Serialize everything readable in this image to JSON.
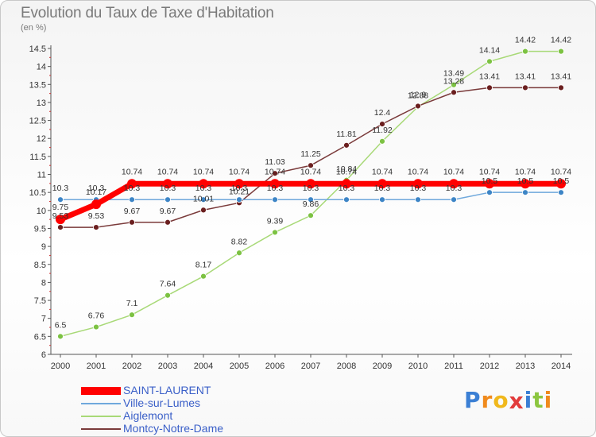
{
  "title": "Evolution du Taux de Taxe d'Habitation",
  "unit_label": "(en %)",
  "logo": {
    "text": "ProXiti",
    "letters": [
      {
        "ch": "P",
        "color": "#3b7fd4"
      },
      {
        "ch": "r",
        "color": "#f08a1c"
      },
      {
        "ch": "o",
        "color": "#f0b81c"
      },
      {
        "ch": "x",
        "color": "#e23b3b"
      },
      {
        "ch": "i",
        "color": "#3b7fd4"
      },
      {
        "ch": "t",
        "color": "#8cc63f"
      },
      {
        "ch": "i",
        "color": "#f08a1c"
      }
    ]
  },
  "chart_data": {
    "type": "line",
    "title": "Evolution du Taux de Taxe d'Habitation",
    "ylabel": "(en %)",
    "xlabel": "",
    "x": [
      "2000",
      "2001",
      "2002",
      "2003",
      "2004",
      "2005",
      "2006",
      "2007",
      "2008",
      "2009",
      "2010",
      "2011",
      "2012",
      "2013",
      "2014"
    ],
    "ylim": [
      6,
      14.5
    ],
    "yticks": [
      "6",
      "6.5",
      "7",
      "7.5",
      "8",
      "8.5",
      "9",
      "9.5",
      "10",
      "10.5",
      "11",
      "11.5",
      "12",
      "12.5",
      "13",
      "13.5",
      "14",
      "14.5"
    ],
    "grid": false,
    "legend_position": "bottom-left",
    "series": [
      {
        "name": "SAINT-LAURENT",
        "color": "#ff0000",
        "marker_color": "#ff0000",
        "values": [
          9.75,
          10.17,
          10.74,
          10.74,
          10.74,
          10.74,
          10.74,
          10.74,
          10.74,
          10.74,
          10.74,
          10.74,
          10.74,
          10.74,
          10.74
        ],
        "labels": [
          "9.75",
          "10.17",
          "10.74",
          "10.74",
          "10.74",
          "10.74",
          "10.74",
          "10.74",
          "10.74",
          "10.74",
          "10.74",
          "10.74",
          "10.74",
          "10.74",
          "10.74"
        ]
      },
      {
        "name": "Ville-sur-Lumes",
        "color": "#6fa8dc",
        "marker_color": "#3d85c6",
        "values": [
          10.3,
          10.3,
          10.3,
          10.3,
          10.3,
          10.3,
          10.3,
          10.3,
          10.3,
          10.3,
          10.3,
          10.3,
          10.5,
          10.5,
          10.5
        ],
        "labels": [
          "10.3",
          "10.3",
          "10.3",
          "10.3",
          "10.3",
          "10.3",
          "10.3",
          "10.3",
          "10.3",
          "10.3",
          "10.3",
          "10.3",
          "10.5",
          "10.5",
          "10.5"
        ]
      },
      {
        "name": "Aiglemont",
        "color": "#a8d977",
        "marker_color": "#7cc242",
        "values": [
          6.5,
          6.76,
          7.1,
          7.64,
          8.17,
          8.82,
          9.39,
          9.86,
          10.84,
          11.92,
          12.88,
          13.49,
          14.14,
          14.42,
          14.42
        ],
        "labels": [
          "6.5",
          "6.76",
          "7.1",
          "7.64",
          "8.17",
          "8.82",
          "9.39",
          "9.86",
          "10.84",
          "11.92",
          "12.88",
          "13.49",
          "14.14",
          "14.42",
          "14.42"
        ]
      },
      {
        "name": "Montcy-Notre-Dame",
        "color": "#7a3a3a",
        "marker_color": "#6b1f1f",
        "values": [
          9.53,
          9.53,
          9.67,
          9.67,
          10.01,
          10.21,
          11.03,
          11.25,
          11.81,
          12.4,
          12.9,
          13.28,
          13.41,
          13.41,
          13.41
        ],
        "labels": [
          "9.53",
          "9.53",
          "9.67",
          "9.67",
          "10.01",
          "10.21",
          "11.03",
          "11.25",
          "11.81",
          "12.4",
          "12.9",
          "13.28",
          "13.41",
          "13.41",
          "13.41"
        ]
      }
    ]
  }
}
